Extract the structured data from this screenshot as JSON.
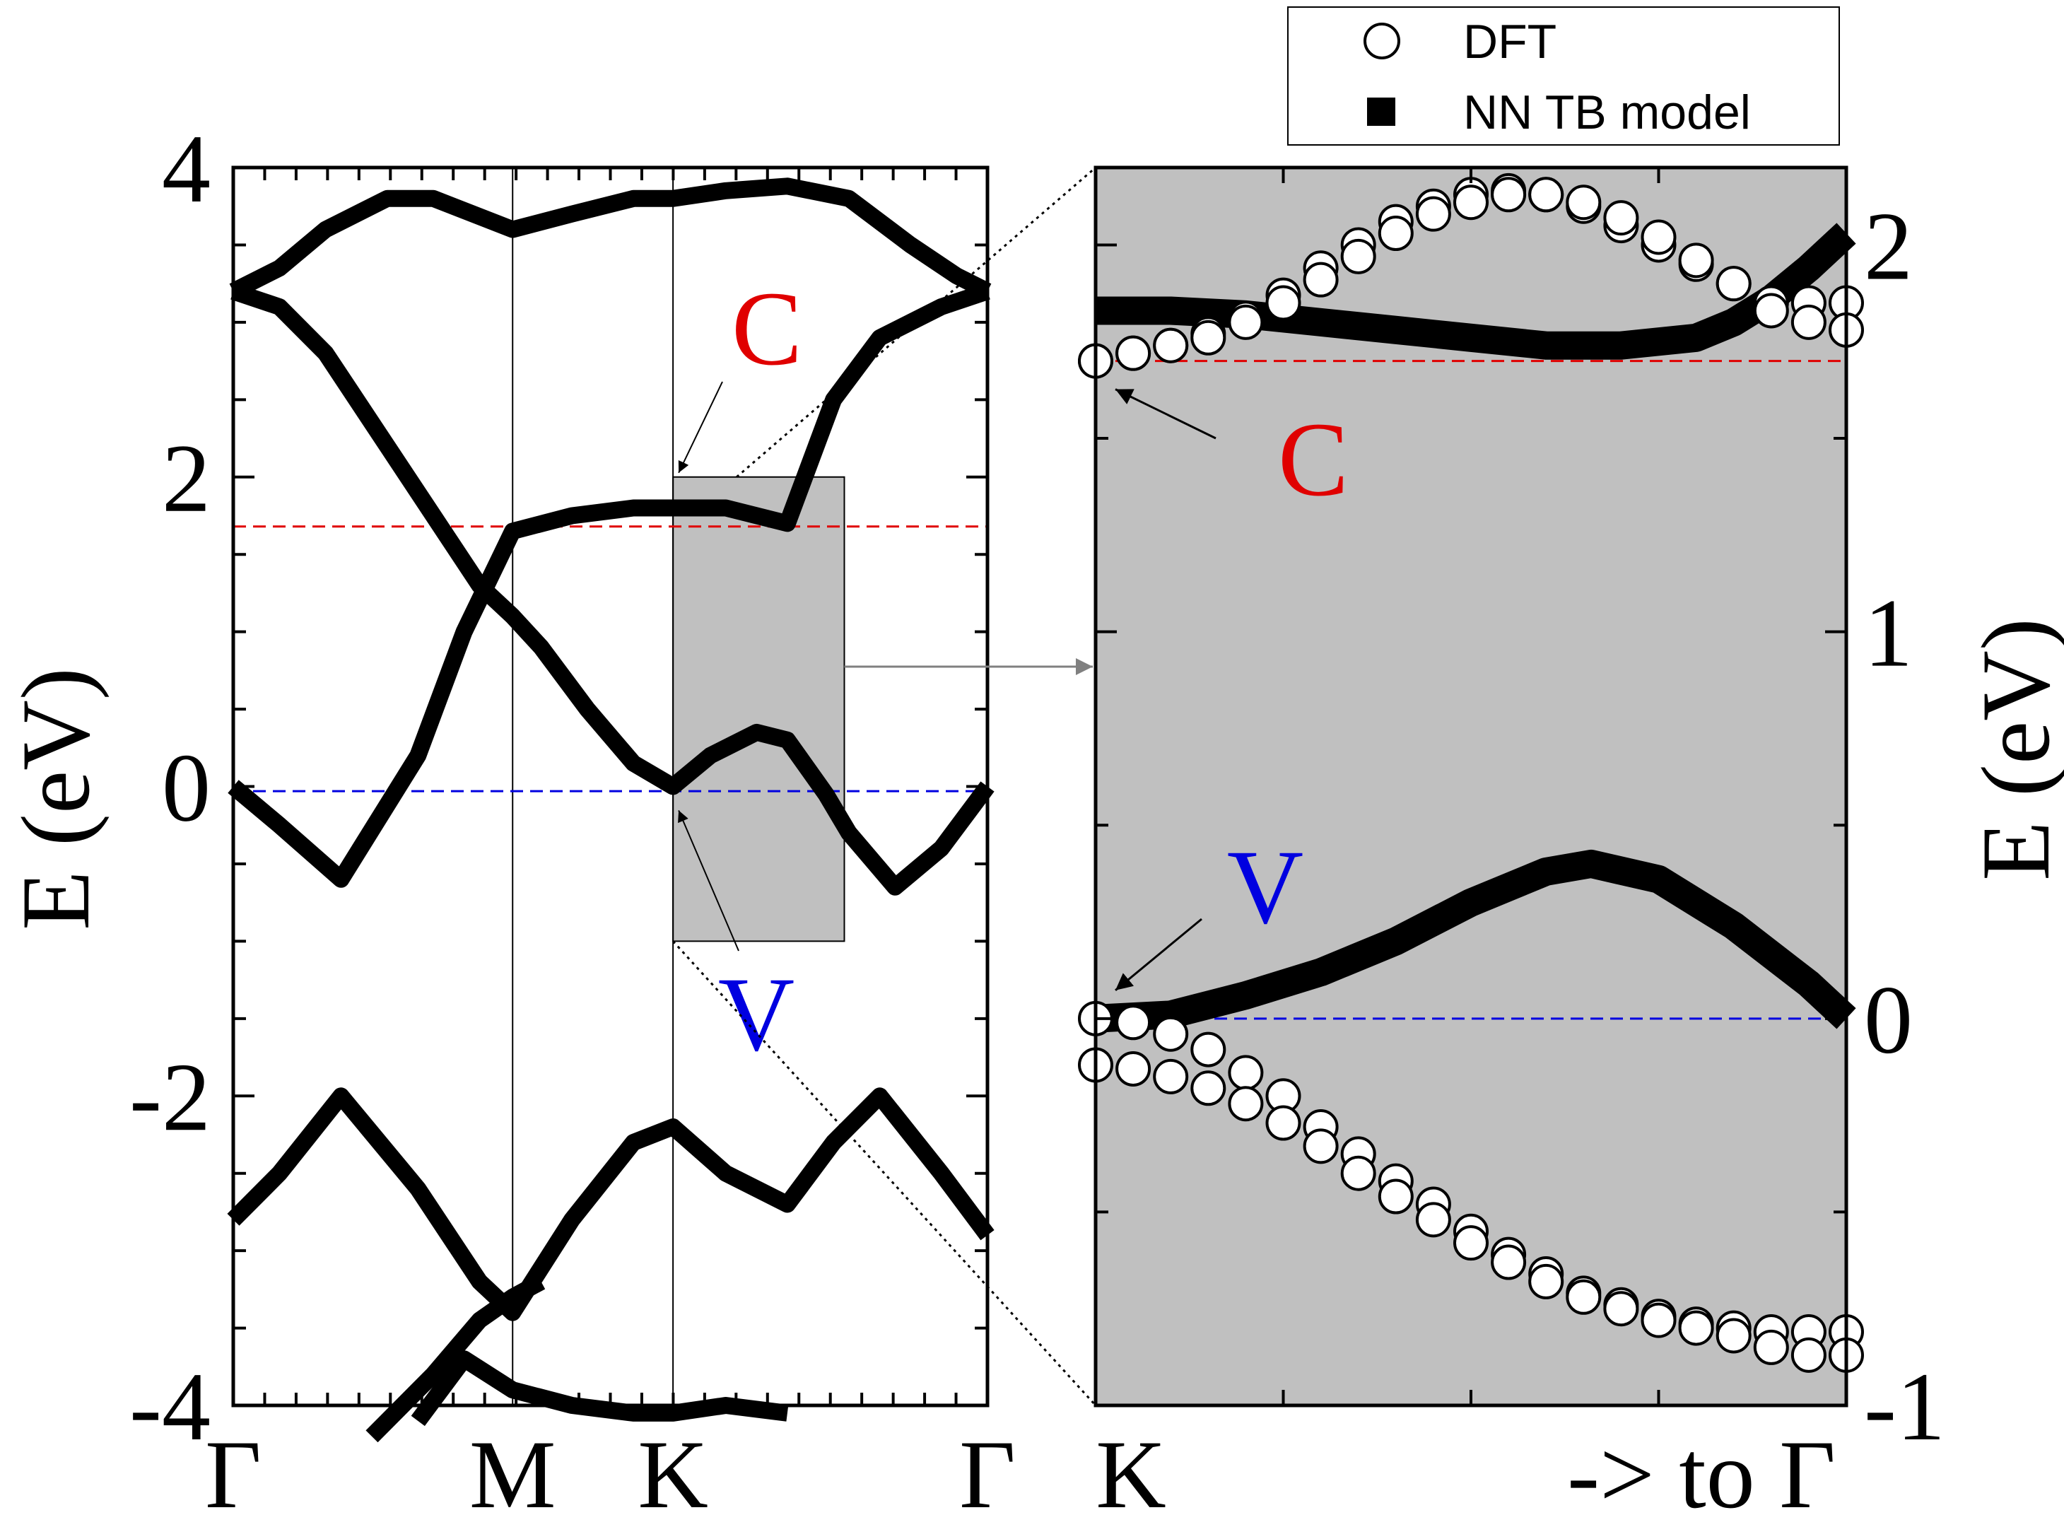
{
  "chart_data": [
    {
      "type": "line",
      "panel": "left",
      "title": "",
      "ylabel": "E (eV)",
      "ylim": [
        -4,
        4
      ],
      "yticks": [
        4,
        2,
        0,
        -2,
        -4
      ],
      "ytick_labels": [
        "4",
        "2",
        "0",
        "-2",
        "-4"
      ],
      "xlim": [
        0,
        4.9
      ],
      "xticks": [
        0,
        1.815,
        2.857,
        4.9
      ],
      "xtick_labels": [
        "Γ",
        "M",
        "K",
        "Γ"
      ],
      "reference_lines": [
        {
          "name": "C",
          "energy": 1.68,
          "color": "#e00000"
        },
        {
          "name": "V",
          "energy": -0.03,
          "color": "#0000e0"
        }
      ],
      "zoom_region": {
        "x": [
          2.857,
          3.97
        ],
        "y": [
          -1,
          2
        ]
      },
      "annotations": [
        {
          "text": "C",
          "color": "#e00000",
          "points_to": [
            2.857,
            2.0
          ]
        },
        {
          "text": "V",
          "color": "#0000e0",
          "points_to": [
            2.857,
            -0.1
          ]
        }
      ],
      "series": [
        {
          "name": "NN TB band 1",
          "x": [
            0,
            0.3,
            0.7,
            1.2,
            1.6,
            1.815,
            2.2,
            2.6,
            2.857,
            3.2,
            3.6,
            3.9,
            4.2,
            4.6,
            4.9
          ],
          "y": [
            -2.8,
            -2.5,
            -2.0,
            -2.6,
            -3.2,
            -3.4,
            -2.8,
            -2.3,
            -2.2,
            -2.5,
            -2.7,
            -2.3,
            -2.0,
            -2.5,
            -2.9
          ]
        },
        {
          "name": "NN TB band 2",
          "x": [
            0,
            0.3,
            0.7,
            1.2,
            1.5,
            1.815,
            2.2,
            2.6,
            2.857,
            3.2,
            3.6,
            3.9,
            4.2,
            4.6,
            4.9
          ],
          "y": [
            0.0,
            -0.25,
            -0.6,
            0.2,
            1.0,
            1.65,
            1.75,
            1.8,
            1.8,
            1.8,
            1.7,
            2.5,
            2.9,
            3.1,
            3.2
          ]
        },
        {
          "name": "NN TB band 3",
          "x": [
            0,
            0.3,
            0.6,
            1.0,
            1.3,
            1.6,
            1.815,
            2.0,
            2.3,
            2.6,
            2.857,
            3.1,
            3.4,
            3.6,
            3.85,
            4.0,
            4.3,
            4.6,
            4.9
          ],
          "y": [
            3.2,
            3.1,
            2.8,
            2.2,
            1.75,
            1.3,
            1.1,
            0.9,
            0.5,
            0.15,
            0.0,
            0.2,
            0.35,
            0.3,
            -0.05,
            -0.3,
            -0.65,
            -0.4,
            0.0
          ]
        },
        {
          "name": "NN TB band 4",
          "x": [
            0,
            0.3,
            0.6,
            1.0,
            1.3,
            1.815,
            2.2,
            2.6,
            2.857,
            3.2,
            3.6,
            4.0,
            4.4,
            4.7,
            4.9
          ],
          "y": [
            3.2,
            3.35,
            3.6,
            3.8,
            3.8,
            3.6,
            3.7,
            3.8,
            3.8,
            3.85,
            3.88,
            3.8,
            3.5,
            3.3,
            3.2
          ]
        },
        {
          "name": "NN TB band 5",
          "x": [
            1.2,
            1.5,
            1.815,
            2.2,
            2.6,
            2.857,
            3.2,
            3.6
          ],
          "y": [
            -4.1,
            -3.7,
            -3.9,
            -4.0,
            -4.05,
            -4.05,
            -4.0,
            -4.05
          ]
        },
        {
          "name": "NN TB band 6",
          "x": [
            0.9,
            1.3,
            1.6,
            1.815,
            2.0
          ],
          "y": [
            -4.2,
            -3.8,
            -3.45,
            -3.3,
            -3.2
          ]
        }
      ]
    },
    {
      "type": "scatter",
      "panel": "right",
      "title": "",
      "ylabel": "E (eV)",
      "ylim": [
        -1,
        2.2
      ],
      "yticks": [
        2,
        1,
        0,
        -1
      ],
      "ytick_labels": [
        "2",
        "1",
        "0",
        "-1"
      ],
      "xlim": [
        0,
        1
      ],
      "xticks": [
        0,
        0.25,
        0.5,
        0.75,
        1
      ],
      "xtick_labels": [
        "K",
        "",
        "",
        "",
        "-> to Γ"
      ],
      "reference_lines": [
        {
          "name": "C",
          "energy": 1.7,
          "color": "#e00000"
        },
        {
          "name": "V",
          "energy": 0.0,
          "color": "#0000e0"
        }
      ],
      "annotations": [
        {
          "text": "C",
          "color": "#e00000",
          "points_to": [
            0.0,
            1.7
          ]
        },
        {
          "text": "V",
          "color": "#0000e0",
          "points_to": [
            0.0,
            0.0
          ]
        }
      ],
      "legend": {
        "position": "top-right",
        "entries": [
          {
            "label": "DFT",
            "marker": "open-circle"
          },
          {
            "label": "NN TB model",
            "marker": "filled-square"
          }
        ]
      },
      "series": [
        {
          "name": "NN TB model (conduction)",
          "marker": "filled-square",
          "x": [
            0,
            0.1,
            0.2,
            0.3,
            0.4,
            0.5,
            0.6,
            0.7,
            0.8,
            0.85,
            0.9,
            0.95,
            1.0
          ],
          "y": [
            1.83,
            1.83,
            1.82,
            1.8,
            1.78,
            1.76,
            1.74,
            1.74,
            1.76,
            1.8,
            1.86,
            1.94,
            2.03
          ]
        },
        {
          "name": "NN TB model (valence)",
          "marker": "filled-square",
          "x": [
            0,
            0.1,
            0.2,
            0.3,
            0.4,
            0.5,
            0.6,
            0.66,
            0.75,
            0.85,
            0.95,
            1.0
          ],
          "y": [
            0.0,
            0.01,
            0.06,
            0.12,
            0.2,
            0.3,
            0.38,
            0.4,
            0.36,
            0.24,
            0.09,
            0.0
          ]
        },
        {
          "name": "DFT band c1",
          "marker": "open-circle",
          "x": [
            0.0,
            0.05,
            0.1,
            0.15,
            0.2,
            0.25,
            0.3,
            0.35,
            0.4,
            0.45,
            0.5,
            0.55,
            0.6,
            0.65,
            0.7,
            0.75,
            0.8,
            0.85,
            0.9,
            0.95,
            1.0
          ],
          "y": [
            1.7,
            1.72,
            1.74,
            1.77,
            1.81,
            1.87,
            1.94,
            2.0,
            2.06,
            2.1,
            2.13,
            2.14,
            2.13,
            2.1,
            2.05,
            2.0,
            1.95,
            1.9,
            1.85,
            1.85,
            1.85
          ]
        },
        {
          "name": "DFT band c2",
          "marker": "open-circle",
          "x": [
            0.0,
            0.05,
            0.1,
            0.15,
            0.2,
            0.25,
            0.3,
            0.35,
            0.4,
            0.45,
            0.5,
            0.55,
            0.6,
            0.65,
            0.7,
            0.75,
            0.8,
            0.85,
            0.9,
            0.95,
            1.0
          ],
          "y": [
            1.7,
            1.72,
            1.74,
            1.76,
            1.8,
            1.85,
            1.91,
            1.97,
            2.03,
            2.08,
            2.11,
            2.13,
            2.13,
            2.11,
            2.07,
            2.02,
            1.96,
            1.9,
            1.83,
            1.8,
            1.78
          ]
        },
        {
          "name": "DFT band v1",
          "marker": "open-circle",
          "x": [
            0.0,
            0.05,
            0.1,
            0.15,
            0.2,
            0.25,
            0.3,
            0.35,
            0.4,
            0.45,
            0.5,
            0.55,
            0.6,
            0.65,
            0.7,
            0.75,
            0.8,
            0.85,
            0.9,
            0.95,
            1.0
          ],
          "y": [
            0.0,
            -0.01,
            -0.04,
            -0.08,
            -0.14,
            -0.2,
            -0.28,
            -0.35,
            -0.42,
            -0.48,
            -0.55,
            -0.61,
            -0.66,
            -0.71,
            -0.74,
            -0.77,
            -0.79,
            -0.8,
            -0.81,
            -0.81,
            -0.81
          ]
        },
        {
          "name": "DFT band v2",
          "marker": "open-circle",
          "x": [
            0.0,
            0.05,
            0.1,
            0.15,
            0.2,
            0.25,
            0.3,
            0.35,
            0.4,
            0.45,
            0.5,
            0.55,
            0.6,
            0.65,
            0.7,
            0.75,
            0.8,
            0.85,
            0.9,
            0.95,
            1.0
          ],
          "y": [
            -0.12,
            -0.13,
            -0.15,
            -0.18,
            -0.22,
            -0.27,
            -0.33,
            -0.4,
            -0.46,
            -0.52,
            -0.58,
            -0.63,
            -0.68,
            -0.72,
            -0.75,
            -0.78,
            -0.8,
            -0.82,
            -0.85,
            -0.87,
            -0.87
          ]
        }
      ]
    }
  ]
}
